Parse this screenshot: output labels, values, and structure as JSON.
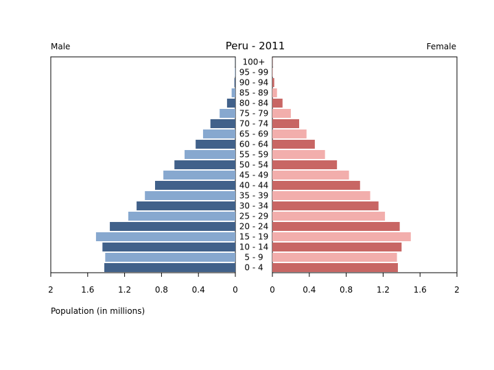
{
  "chart_data": {
    "type": "bar",
    "title": "Peru - 2011",
    "left_label": "Male",
    "right_label": "Female",
    "xlabel": "Population (in millions)",
    "xlim": [
      0,
      2
    ],
    "x_ticks": [
      "2",
      "1.6",
      "1.2",
      "0.8",
      "0.4",
      "0",
      "0",
      "0.4",
      "0.8",
      "1.2",
      "1.6",
      "2"
    ],
    "categories": [
      "0 - 4",
      "5 - 9",
      "10 - 14",
      "15 - 19",
      "20 - 24",
      "25 - 29",
      "30 - 34",
      "35 - 39",
      "40 - 44",
      "45 - 49",
      "50 - 54",
      "55 - 59",
      "60 - 64",
      "65 - 69",
      "70 - 74",
      "75 - 79",
      "80 - 84",
      "85 - 89",
      "90 - 94",
      "95 - 99",
      "100+"
    ],
    "series": [
      {
        "name": "Male",
        "values": [
          1.42,
          1.41,
          1.44,
          1.51,
          1.36,
          1.16,
          1.07,
          0.98,
          0.87,
          0.78,
          0.66,
          0.55,
          0.43,
          0.35,
          0.27,
          0.17,
          0.09,
          0.04,
          0.01,
          0.005,
          0.002
        ]
      },
      {
        "name": "Female",
        "values": [
          1.36,
          1.35,
          1.4,
          1.5,
          1.38,
          1.22,
          1.15,
          1.06,
          0.95,
          0.83,
          0.7,
          0.57,
          0.46,
          0.37,
          0.29,
          0.2,
          0.11,
          0.05,
          0.02,
          0.005,
          0.002
        ]
      }
    ],
    "colors": {
      "male_dark": "#41618a",
      "male_light": "#87a8cf",
      "female_dark": "#c86664",
      "female_light": "#f2aeac"
    }
  }
}
